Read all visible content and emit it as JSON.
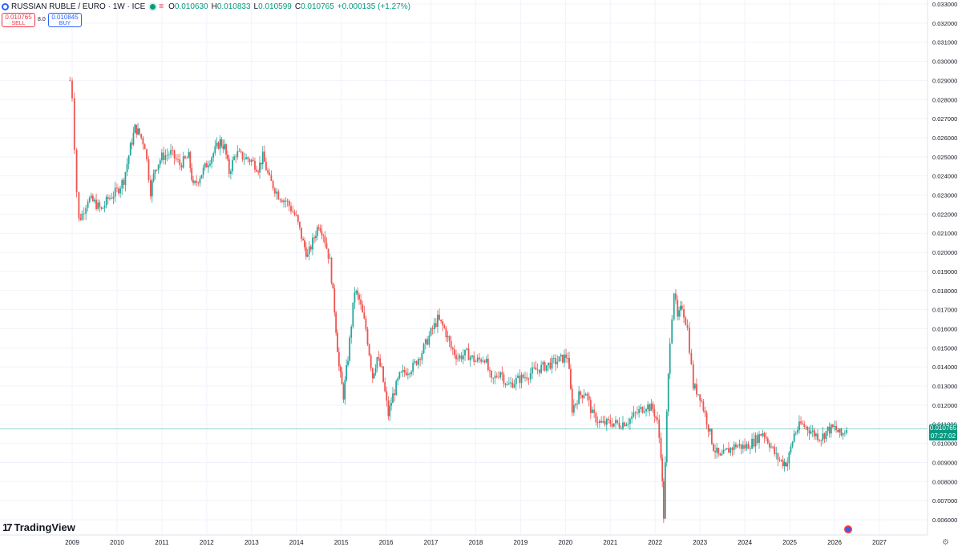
{
  "header": {
    "symbol": "RUSSIAN RUBLE / EURO · 1W · ICE",
    "open_label": "O",
    "open": "0.010630",
    "high_label": "H",
    "high": "0.010833",
    "low_label": "L",
    "low": "0.010599",
    "close_label": "C",
    "close": "0.010765",
    "change": "+0.000135 (+1.27%)"
  },
  "trade": {
    "sell_price": "0.010765",
    "sell_label": "SELL",
    "spread": "8.0",
    "buy_price": "0.010845",
    "buy_label": "BUY"
  },
  "brand": "TradingView",
  "last_price": {
    "value": "0.010765",
    "countdown": "07:27:02"
  },
  "colors": {
    "up": "#26a69a",
    "down": "#ef5350",
    "grid": "#f0f3fa",
    "last": "#089981"
  },
  "chart_data": {
    "type": "candlestick",
    "x_unit": "year",
    "y_ticks": [
      "0.033000",
      "0.032000",
      "0.031000",
      "0.030000",
      "0.029000",
      "0.028000",
      "0.027000",
      "0.026000",
      "0.025000",
      "0.024000",
      "0.023000",
      "0.022000",
      "0.021000",
      "0.020000",
      "0.019000",
      "0.018000",
      "0.017000",
      "0.016000",
      "0.015000",
      "0.014000",
      "0.013000",
      "0.012000",
      "0.011000",
      "0.010000",
      "0.009000",
      "0.008000",
      "0.007000",
      "0.006000"
    ],
    "x_ticks": [
      "2009",
      "2010",
      "2011",
      "2012",
      "2013",
      "2014",
      "2015",
      "2016",
      "2017",
      "2018",
      "2019",
      "2020",
      "2021",
      "2022",
      "2023",
      "2024",
      "2025",
      "2026",
      "2027"
    ],
    "ylim": [
      0.0055,
      0.0333
    ],
    "xlim": [
      2008.62,
      2027.8
    ],
    "last_value": 0.010765,
    "series": [
      [
        2008.95,
        0.029
      ],
      [
        2009.0,
        0.0282
      ],
      [
        2009.05,
        0.0256
      ],
      [
        2009.1,
        0.0232
      ],
      [
        2009.15,
        0.0217
      ],
      [
        2009.22,
        0.022
      ],
      [
        2009.35,
        0.0228
      ],
      [
        2009.5,
        0.0226
      ],
      [
        2009.65,
        0.0222
      ],
      [
        2009.8,
        0.0228
      ],
      [
        2010.0,
        0.0232
      ],
      [
        2010.15,
        0.0238
      ],
      [
        2010.3,
        0.0255
      ],
      [
        2010.4,
        0.0265
      ],
      [
        2010.5,
        0.0262
      ],
      [
        2010.62,
        0.0256
      ],
      [
        2010.75,
        0.0232
      ],
      [
        2010.85,
        0.0244
      ],
      [
        2011.0,
        0.025
      ],
      [
        2011.2,
        0.0252
      ],
      [
        2011.4,
        0.0246
      ],
      [
        2011.6,
        0.025
      ],
      [
        2011.7,
        0.0234
      ],
      [
        2011.85,
        0.024
      ],
      [
        2012.0,
        0.0246
      ],
      [
        2012.15,
        0.0252
      ],
      [
        2012.3,
        0.0258
      ],
      [
        2012.4,
        0.0255
      ],
      [
        2012.5,
        0.0242
      ],
      [
        2012.65,
        0.0252
      ],
      [
        2012.8,
        0.025
      ],
      [
        2013.0,
        0.0248
      ],
      [
        2013.15,
        0.0244
      ],
      [
        2013.25,
        0.025
      ],
      [
        2013.4,
        0.0238
      ],
      [
        2013.6,
        0.023
      ],
      [
        2013.8,
        0.0226
      ],
      [
        2014.0,
        0.0218
      ],
      [
        2014.15,
        0.0205
      ],
      [
        2014.25,
        0.0198
      ],
      [
        2014.4,
        0.0208
      ],
      [
        2014.5,
        0.0215
      ],
      [
        2014.6,
        0.021
      ],
      [
        2014.75,
        0.0195
      ],
      [
        2014.85,
        0.017
      ],
      [
        2014.95,
        0.014
      ],
      [
        2015.05,
        0.0125
      ],
      [
        2015.15,
        0.0145
      ],
      [
        2015.3,
        0.018
      ],
      [
        2015.4,
        0.0175
      ],
      [
        2015.55,
        0.016
      ],
      [
        2015.7,
        0.0135
      ],
      [
        2015.8,
        0.0145
      ],
      [
        2015.9,
        0.0138
      ],
      [
        2016.05,
        0.0115
      ],
      [
        2016.15,
        0.0125
      ],
      [
        2016.3,
        0.0135
      ],
      [
        2016.45,
        0.0138
      ],
      [
        2016.6,
        0.014
      ],
      [
        2016.8,
        0.0148
      ],
      [
        2017.0,
        0.0158
      ],
      [
        2017.15,
        0.0165
      ],
      [
        2017.3,
        0.016
      ],
      [
        2017.45,
        0.015
      ],
      [
        2017.6,
        0.0145
      ],
      [
        2017.8,
        0.0147
      ],
      [
        2018.0,
        0.0143
      ],
      [
        2018.2,
        0.0145
      ],
      [
        2018.35,
        0.0132
      ],
      [
        2018.55,
        0.0138
      ],
      [
        2018.7,
        0.013
      ],
      [
        2018.9,
        0.0133
      ],
      [
        2019.1,
        0.0135
      ],
      [
        2019.3,
        0.0138
      ],
      [
        2019.5,
        0.014
      ],
      [
        2019.7,
        0.0142
      ],
      [
        2019.9,
        0.0144
      ],
      [
        2020.05,
        0.0146
      ],
      [
        2020.15,
        0.0118
      ],
      [
        2020.3,
        0.0125
      ],
      [
        2020.45,
        0.0127
      ],
      [
        2020.6,
        0.0115
      ],
      [
        2020.8,
        0.011
      ],
      [
        2021.0,
        0.0111
      ],
      [
        2021.2,
        0.011
      ],
      [
        2021.4,
        0.0112
      ],
      [
        2021.6,
        0.0116
      ],
      [
        2021.8,
        0.012
      ],
      [
        2021.95,
        0.0118
      ],
      [
        2022.05,
        0.0111
      ],
      [
        2022.13,
        0.0095
      ],
      [
        2022.19,
        0.0062
      ],
      [
        2022.26,
        0.0115
      ],
      [
        2022.33,
        0.0155
      ],
      [
        2022.42,
        0.018
      ],
      [
        2022.5,
        0.0165
      ],
      [
        2022.6,
        0.0172
      ],
      [
        2022.72,
        0.016
      ],
      [
        2022.85,
        0.013
      ],
      [
        2023.0,
        0.0125
      ],
      [
        2023.15,
        0.0112
      ],
      [
        2023.3,
        0.0098
      ],
      [
        2023.45,
        0.0092
      ],
      [
        2023.6,
        0.0096
      ],
      [
        2023.8,
        0.0099
      ],
      [
        2024.0,
        0.0098
      ],
      [
        2024.2,
        0.0101
      ],
      [
        2024.4,
        0.0106
      ],
      [
        2024.55,
        0.01
      ],
      [
        2024.7,
        0.0093
      ],
      [
        2024.85,
        0.009
      ],
      [
        2024.95,
        0.009
      ],
      [
        2025.1,
        0.0105
      ],
      [
        2025.25,
        0.011
      ],
      [
        2025.4,
        0.0108
      ],
      [
        2025.55,
        0.0105
      ],
      [
        2025.7,
        0.0103
      ],
      [
        2025.85,
        0.0107
      ],
      [
        2026.0,
        0.0108
      ],
      [
        2026.15,
        0.0104
      ],
      [
        2026.27,
        0.0108
      ]
    ]
  }
}
